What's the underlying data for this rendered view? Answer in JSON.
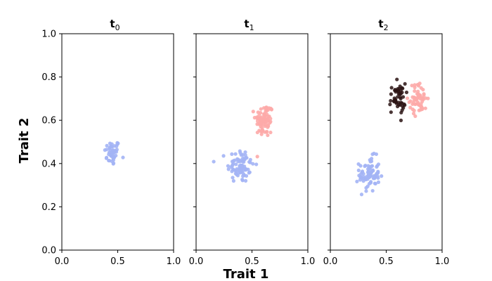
{
  "chart_data": {
    "type": "scatter",
    "xlabel": "Trait 1",
    "ylabel": "Trait 2",
    "xlim": [
      0.0,
      1.0
    ],
    "ylim": [
      0.0,
      1.0
    ],
    "x_ticks": [
      "0.0",
      "0.5",
      "1.0"
    ],
    "y_ticks": [
      "0.0",
      "0.2",
      "0.4",
      "0.6",
      "0.8",
      "1.0"
    ],
    "grid": false,
    "colors": {
      "blue": "#a3b4f5",
      "pink": "#fdaaa8",
      "dark": "#2b1414"
    },
    "panels": [
      {
        "title_base": "t",
        "title_sub": "0",
        "clusters": [
          {
            "color": "blue",
            "cx": 0.45,
            "cy": 0.45,
            "sx": 0.035,
            "sy": 0.03,
            "n": 45
          }
        ]
      },
      {
        "title_base": "t",
        "title_sub": "1",
        "clusters": [
          {
            "color": "blue",
            "cx": 0.4,
            "cy": 0.39,
            "sx": 0.06,
            "sy": 0.04,
            "n": 80
          },
          {
            "color": "pink",
            "cx": 0.61,
            "cy": 0.6,
            "sx": 0.04,
            "sy": 0.04,
            "n": 80
          }
        ]
      },
      {
        "title_base": "t",
        "title_sub": "2",
        "clusters": [
          {
            "color": "blue",
            "cx": 0.35,
            "cy": 0.35,
            "sx": 0.045,
            "sy": 0.04,
            "n": 80
          },
          {
            "color": "pink",
            "cx": 0.79,
            "cy": 0.7,
            "sx": 0.04,
            "sy": 0.035,
            "n": 60
          },
          {
            "color": "dark",
            "cx": 0.6,
            "cy": 0.7,
            "sx": 0.035,
            "sy": 0.035,
            "n": 50
          }
        ]
      }
    ]
  }
}
